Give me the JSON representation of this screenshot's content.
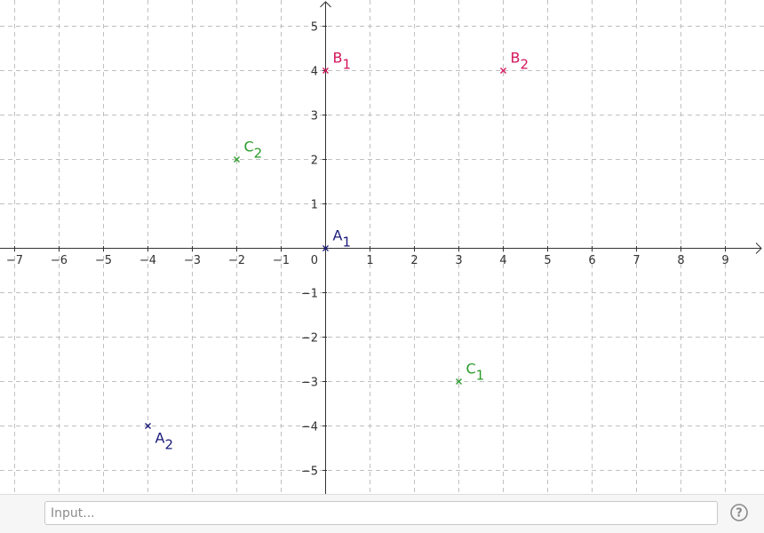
{
  "graphics": {
    "x_axis": {
      "min": -7,
      "max": 9,
      "tick_labels": [
        "−7",
        "−6",
        "−5",
        "−4",
        "−3",
        "−2",
        "−1",
        "1",
        "2",
        "3",
        "4",
        "5",
        "6",
        "7",
        "8",
        "9"
      ],
      "ticks": [
        -7,
        -6,
        -5,
        -4,
        -3,
        -2,
        -1,
        1,
        2,
        3,
        4,
        5,
        6,
        7,
        8,
        9
      ]
    },
    "y_axis": {
      "min": -5,
      "max": 5,
      "tick_labels": [
        "−5",
        "−4",
        "−3",
        "−2",
        "−1",
        "1",
        "2",
        "3",
        "4",
        "5"
      ],
      "ticks": [
        -5,
        -4,
        -3,
        -2,
        -1,
        1,
        2,
        3,
        4,
        5
      ]
    },
    "origin_label": "0",
    "grid": true,
    "grid_style": "dashed",
    "point_style": "cross",
    "points": [
      {
        "name": "A",
        "subscript": "1",
        "x": 0,
        "y": 0,
        "color": "#1a1a7a",
        "label_pos": "upper-right"
      },
      {
        "name": "A",
        "subscript": "2",
        "x": -4,
        "y": -4,
        "color": "#1a1a7a",
        "label_pos": "lower-right"
      },
      {
        "name": "B",
        "subscript": "1",
        "x": 0,
        "y": 4,
        "color": "#d4145a",
        "label_pos": "upper-right"
      },
      {
        "name": "B",
        "subscript": "2",
        "x": 4,
        "y": 4,
        "color": "#d4145a",
        "label_pos": "upper-right"
      },
      {
        "name": "C",
        "subscript": "1",
        "x": 3,
        "y": -3,
        "color": "#2a9a2a",
        "label_pos": "upper-right"
      },
      {
        "name": "C",
        "subscript": "2",
        "x": -2,
        "y": 2,
        "color": "#2a9a2a",
        "label_pos": "upper-right"
      }
    ]
  },
  "input_bar": {
    "placeholder": "Input..."
  },
  "help": {
    "symbol": "?"
  }
}
